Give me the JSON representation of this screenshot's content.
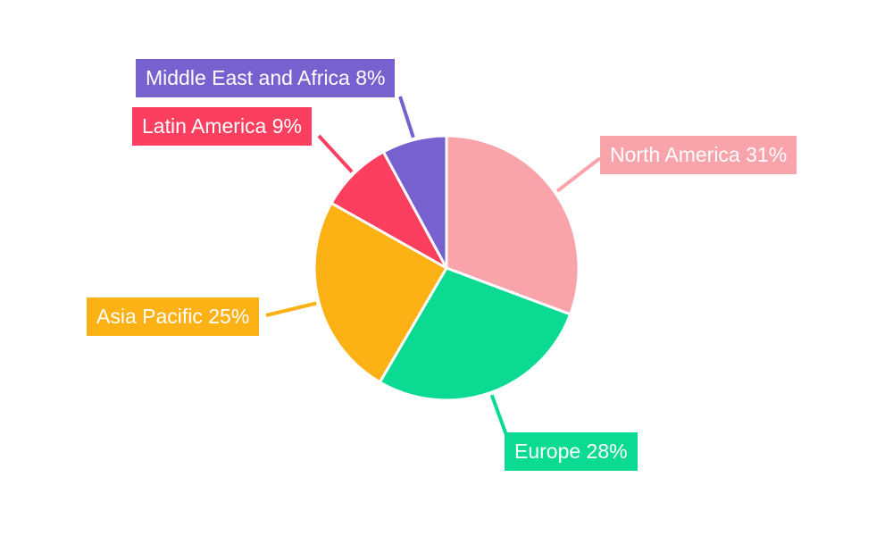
{
  "chart_data": {
    "type": "pie",
    "categories": [
      "North America",
      "Europe",
      "Asia Pacific",
      "Latin America",
      "Middle East and Africa"
    ],
    "values": [
      31,
      28,
      25,
      9,
      8
    ],
    "value_unit": "%",
    "labels": [
      "North America 31%",
      "Europe 28%",
      "Asia Pacific 25%",
      "Latin America 9%",
      "Middle East and Africa 8%"
    ],
    "slice_colors": [
      "#F9A3AB",
      "#0BDA92",
      "#FCB115",
      "#FC3F5F",
      "#7661CF"
    ],
    "label_text_color": "#ffffff",
    "slice_border_color": "#ffffff",
    "background_color": "#ffffff",
    "start_angle_deg": 0,
    "direction": "clockwise",
    "legend_position": "none",
    "grid": false
  }
}
